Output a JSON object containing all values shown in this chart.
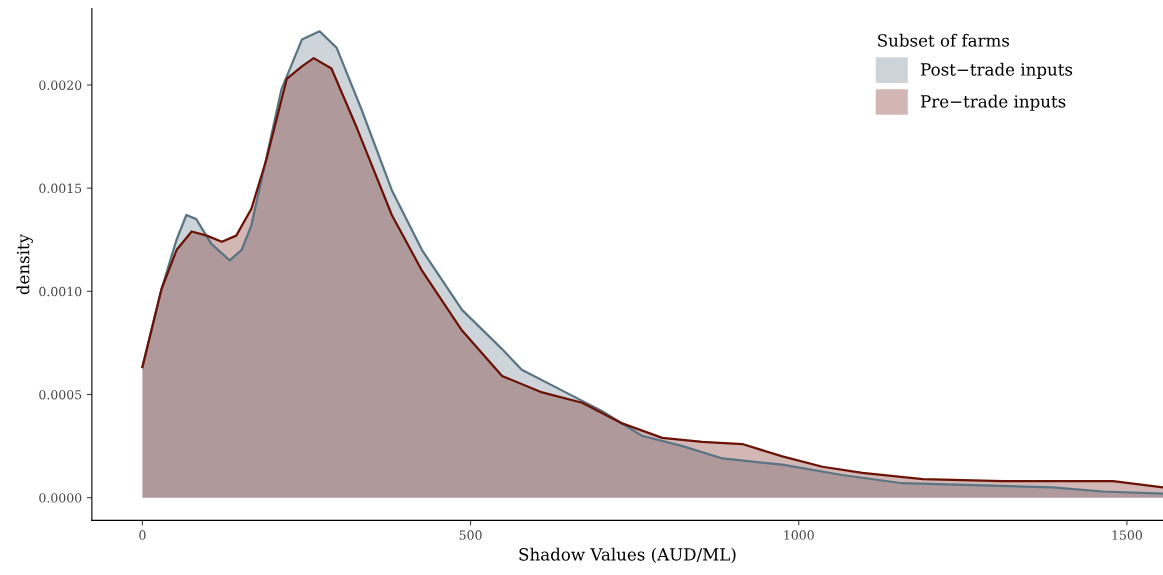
{
  "chart_data": {
    "type": "area",
    "xlabel": "Shadow Values (AUD/ML)",
    "ylabel": "density",
    "legend_title": "Subset of farms",
    "legend": "top right",
    "grid": false,
    "xlim": [
      -77,
      1555
    ],
    "ylim": [
      -0.00011,
      0.00237
    ],
    "xticks": [
      0,
      500,
      1000,
      1500
    ],
    "yticks": [
      {
        "value": 0,
        "label": "0.0000"
      },
      {
        "value": 0.0005,
        "label": "0.0005"
      },
      {
        "value": 0.001,
        "label": "0.0010"
      },
      {
        "value": 0.0015,
        "label": "0.0015"
      },
      {
        "value": 0.002,
        "label": "0.0020"
      }
    ],
    "series": [
      {
        "name": "Post−trade inputs",
        "color": "#5b7483",
        "x": [
          0,
          29,
          52,
          67,
          82,
          105,
          133,
          151,
          166,
          185,
          212,
          243,
          270,
          296,
          334,
          380,
          426,
          487,
          548,
          578,
          639,
          700,
          761,
          823,
          884,
          975,
          1066,
          1158,
          1280,
          1387,
          1463,
          1555
        ],
        "values": [
          0.000633,
          0.00101,
          0.00125,
          0.00137,
          0.00135,
          0.00123,
          0.00115,
          0.0012,
          0.00132,
          0.00159,
          0.00198,
          0.00222,
          0.00226,
          0.00218,
          0.00188,
          0.00149,
          0.0012,
          0.00091,
          0.00072,
          0.00062,
          0.00052,
          0.00042,
          0.0003,
          0.00025,
          0.00019,
          0.00016,
          0.00011,
          7e-05,
          6e-05,
          5e-05,
          3e-05,
          2e-05
        ]
      },
      {
        "name": "Pre−trade inputs",
        "color": "#6b1206",
        "x": [
          0,
          29,
          52,
          75,
          98,
          121,
          143,
          166,
          189,
          220,
          243,
          261,
          288,
          327,
          380,
          426,
          487,
          548,
          609,
          670,
          731,
          792,
          853,
          914,
          975,
          1036,
          1097,
          1189,
          1311,
          1402,
          1479,
          1555
        ],
        "values": [
          0.000633,
          0.00101,
          0.0012,
          0.00129,
          0.00127,
          0.00124,
          0.00127,
          0.0014,
          0.00164,
          0.00203,
          0.00209,
          0.00213,
          0.00208,
          0.00179,
          0.00137,
          0.0011,
          0.00081,
          0.00059,
          0.00051,
          0.00046,
          0.00036,
          0.00029,
          0.00027,
          0.00026,
          0.0002,
          0.00015,
          0.00012,
          9e-05,
          8e-05,
          8e-05,
          8e-05,
          5e-05
        ]
      }
    ]
  }
}
